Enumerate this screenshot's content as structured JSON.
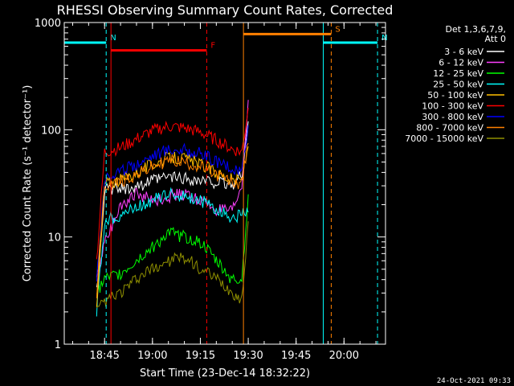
{
  "chart_data": {
    "type": "line",
    "title": "RHESSI Observing Summary Count Rates, Corrected",
    "xlabel": "Start Time (23-Dec-14 18:32:22)",
    "ylabel": "Corrected Count Rate (s⁻¹ detector⁻¹)",
    "y_scale": "log",
    "ylim": [
      1,
      1000
    ],
    "xlim": [
      "18:32:22",
      "20:13"
    ],
    "x_ticks": [
      "18:45",
      "19:00",
      "19:15",
      "19:30",
      "19:45",
      "20:00"
    ],
    "y_ticks": [
      "1",
      "10",
      "100",
      "1000"
    ],
    "legend_title": [
      "Det 1,3,6,7,9,",
      "Att 0"
    ],
    "legend_position": "top-right, outside plot",
    "series": [
      {
        "name": "3 - 6 keV",
        "color": "#ffffff",
        "x": [
          "18:42:30",
          "18:45",
          "18:50",
          "18:55",
          "19:00",
          "19:05",
          "19:10",
          "19:15",
          "19:20",
          "19:25",
          "19:28",
          "19:30"
        ],
        "y": [
          3,
          27,
          28,
          30,
          33,
          36,
          35,
          33,
          32,
          30,
          38,
          120
        ]
      },
      {
        "name": "6 - 12 keV",
        "color": "#ff40ff",
        "x": [
          "18:42:30",
          "18:45",
          "18:50",
          "18:55",
          "19:00",
          "19:05",
          "19:10",
          "19:15",
          "19:20",
          "19:25",
          "19:28",
          "19:30"
        ],
        "y": [
          4,
          9,
          20,
          25,
          22,
          24,
          25,
          22,
          18,
          17,
          30,
          190
        ]
      },
      {
        "name": "12 - 25 keV",
        "color": "#00ff00",
        "x": [
          "18:42:30",
          "18:45",
          "18:50",
          "18:55",
          "19:00",
          "19:05",
          "19:10",
          "19:15",
          "19:20",
          "19:25",
          "19:28",
          "19:30"
        ],
        "y": [
          3,
          4,
          4.5,
          6,
          8,
          11,
          10,
          9,
          6,
          4,
          4,
          25
        ]
      },
      {
        "name": "25 - 50 keV",
        "color": "#00ffff",
        "x": [
          "18:42:30",
          "18:45",
          "18:50",
          "18:55",
          "19:00",
          "19:05",
          "19:10",
          "19:15",
          "19:20",
          "19:25",
          "19:28",
          "19:30"
        ],
        "y": [
          2,
          14,
          16,
          19,
          22,
          25,
          24,
          22,
          18,
          15,
          16,
          17
        ]
      },
      {
        "name": "50 - 100 keV",
        "color": "#ffc000",
        "x": [
          "18:42:30",
          "18:45",
          "18:50",
          "18:55",
          "19:00",
          "19:05",
          "19:10",
          "19:15",
          "19:20",
          "19:25",
          "19:28",
          "19:30"
        ],
        "y": [
          2,
          32,
          34,
          40,
          48,
          55,
          54,
          48,
          40,
          34,
          34,
          70
        ]
      },
      {
        "name": "100 - 300 keV",
        "color": "#ff0000",
        "x": [
          "18:42:30",
          "18:45",
          "18:50",
          "18:55",
          "19:00",
          "19:05",
          "19:10",
          "19:15",
          "19:20",
          "19:25",
          "19:28",
          "19:30"
        ],
        "y": [
          6,
          62,
          68,
          82,
          98,
          108,
          104,
          95,
          80,
          66,
          62,
          160
        ]
      },
      {
        "name": "300 - 800 keV",
        "color": "#0000ff",
        "x": [
          "18:42:30",
          "18:45",
          "18:50",
          "18:55",
          "19:00",
          "19:05",
          "19:10",
          "19:15",
          "19:20",
          "19:25",
          "19:28",
          "19:30"
        ],
        "y": [
          4,
          36,
          40,
          48,
          58,
          66,
          65,
          60,
          50,
          42,
          40,
          110
        ]
      },
      {
        "name": "800 - 7000 keV",
        "color": "#ff8000",
        "x": [
          "18:42:30",
          "18:45",
          "18:50",
          "18:55",
          "19:00",
          "19:05",
          "19:10",
          "19:15",
          "19:20",
          "19:25",
          "19:28",
          "19:30"
        ],
        "y": [
          3,
          30,
          33,
          38,
          45,
          52,
          50,
          45,
          38,
          32,
          32,
          75
        ]
      },
      {
        "name": "7000 - 15000 keV",
        "color": "#909000",
        "x": [
          "18:42:30",
          "18:45",
          "18:50",
          "18:55",
          "19:00",
          "19:05",
          "19:10",
          "19:15",
          "19:20",
          "19:25",
          "19:28",
          "19:30"
        ],
        "y": [
          2,
          2.5,
          3,
          4,
          5,
          6,
          6.5,
          5,
          4,
          3,
          2.5,
          14
        ]
      }
    ],
    "annotations": [
      {
        "type": "night",
        "label": "N",
        "color": "#00ffff",
        "level": 650,
        "intervals": [
          [
            "18:32:22",
            "18:45:30"
          ],
          [
            "19:53:30",
            "20:10:30"
          ]
        ]
      },
      {
        "type": "flare",
        "label": "F",
        "color": "#ff0000",
        "level": 550,
        "intervals": [
          [
            "18:47",
            "19:17"
          ]
        ]
      },
      {
        "type": "saa",
        "label": "S",
        "color": "#ff8000",
        "level": 780,
        "intervals": [
          [
            "19:28:30",
            "19:56"
          ]
        ]
      }
    ]
  },
  "footer": {
    "timestamp": "24-Oct-2021 09:33"
  }
}
